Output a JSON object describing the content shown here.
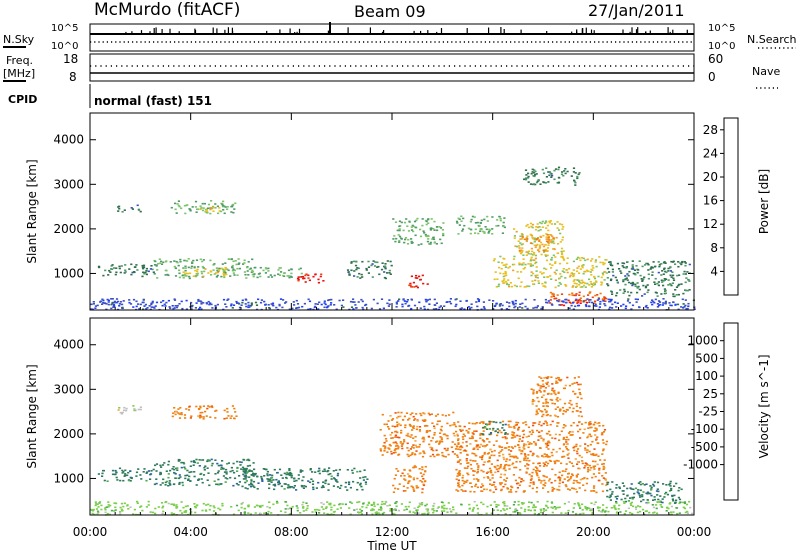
{
  "header": {
    "station": "McMurdo (fitACF)",
    "beam": "Beam 09",
    "date": "27/Jan/2011"
  },
  "noise_panel": {
    "left_label": "N.Sky",
    "right_label": "N.Search",
    "tick_top": "10^5",
    "tick_bottom": "10^0"
  },
  "freq_panel": {
    "left_label_line1": "Freq.",
    "left_label_line2": "[MHz]",
    "left_ticks": [
      "18",
      "8"
    ],
    "right_label": "Nave",
    "right_ticks": [
      "60",
      "0"
    ]
  },
  "cpid": {
    "label": "CPID",
    "value": "normal (fast) 151"
  },
  "colors": {
    "power": [
      "#1f3fff",
      "#3a50c4",
      "#2f6f4c",
      "#4f9a66",
      "#7cc46a",
      "#e8c020",
      "#f0a030",
      "#f07a10",
      "#f04010",
      "#e81010"
    ],
    "velocity": [
      "#3050d8",
      "#2a62a8",
      "#2e7a5a",
      "#4caa50",
      "#7ad04a",
      "#c0c0c0",
      "#f7a640",
      "#f08010",
      "#f05010",
      "#e81010"
    ]
  },
  "chart_data": [
    {
      "type": "heatmap",
      "title": "",
      "xlabel": "Time UT",
      "ylabel": "Slant Range [km]",
      "xlim": [
        "00:00",
        "24:00"
      ],
      "ylim": [
        180,
        4600
      ],
      "x_ticks": [
        "00:00",
        "04:00",
        "08:00",
        "12:00",
        "16:00",
        "20:00",
        "00:00"
      ],
      "y_ticks": [
        1000,
        2000,
        3000,
        4000
      ],
      "colorbar": {
        "label": "Power [dB]",
        "ticks": [
          "4",
          "8",
          "12",
          "16",
          "20",
          "24",
          "28"
        ],
        "range": [
          0,
          30
        ]
      },
      "regions": [
        {
          "t0": 0.3,
          "t1": 2.5,
          "r0": 950,
          "r1": 1250,
          "v": 8
        },
        {
          "t0": 2.5,
          "t1": 6.5,
          "r0": 900,
          "r1": 1350,
          "v": 12
        },
        {
          "t0": 3.5,
          "t1": 5.5,
          "r0": 950,
          "r1": 1150,
          "v": 16
        },
        {
          "t0": 6.5,
          "t1": 8.5,
          "r0": 900,
          "r1": 1150,
          "v": 12
        },
        {
          "t0": 8.2,
          "t1": 9.3,
          "r0": 800,
          "r1": 1050,
          "v": 28
        },
        {
          "t0": 1.0,
          "t1": 2.0,
          "r0": 2400,
          "r1": 2550,
          "v": 8
        },
        {
          "t0": 3.2,
          "t1": 5.8,
          "r0": 2350,
          "r1": 2650,
          "v": 12
        },
        {
          "t0": 4.3,
          "t1": 5.3,
          "r0": 2400,
          "r1": 2550,
          "v": 16
        },
        {
          "t0": 10.2,
          "t1": 12.0,
          "r0": 900,
          "r1": 1300,
          "v": 8
        },
        {
          "t0": 12.6,
          "t1": 13.4,
          "r0": 700,
          "r1": 1000,
          "v": 28
        },
        {
          "t0": 12.0,
          "t1": 14.0,
          "r0": 1650,
          "r1": 2250,
          "v": 12
        },
        {
          "t0": 14.5,
          "t1": 16.5,
          "r0": 1900,
          "r1": 2300,
          "v": 12
        },
        {
          "t0": 16.0,
          "t1": 20.5,
          "r0": 700,
          "r1": 1400,
          "v": 16
        },
        {
          "t0": 16.8,
          "t1": 18.8,
          "r0": 1400,
          "r1": 2200,
          "v": 16
        },
        {
          "t0": 17.0,
          "t1": 18.5,
          "r0": 1500,
          "r1": 1900,
          "v": 20
        },
        {
          "t0": 17.2,
          "t1": 19.5,
          "r0": 3000,
          "r1": 3400,
          "v": 8
        },
        {
          "t0": 18.0,
          "t1": 20.5,
          "r0": 350,
          "r1": 600,
          "v": 24
        },
        {
          "t0": 18.5,
          "t1": 19.8,
          "r0": 300,
          "r1": 450,
          "v": 28
        },
        {
          "t0": 20.5,
          "t1": 23.8,
          "r0": 500,
          "r1": 1300,
          "v": 8
        },
        {
          "t0": 0.0,
          "t1": 24.0,
          "r0": 200,
          "r1": 450,
          "v": 4
        }
      ]
    },
    {
      "type": "heatmap",
      "title": "",
      "xlabel": "Time UT",
      "ylabel": "Slant Range [km]",
      "xlim": [
        "00:00",
        "24:00"
      ],
      "ylim": [
        180,
        4600
      ],
      "x_ticks": [
        "00:00",
        "04:00",
        "08:00",
        "12:00",
        "16:00",
        "20:00",
        "00:00"
      ],
      "y_ticks": [
        1000,
        2000,
        3000,
        4000
      ],
      "colorbar": {
        "label": "Velocity [m s^-1]",
        "ticks": [
          "1000",
          "500",
          "100",
          "25",
          "-25",
          "-100",
          "-500",
          "-1000"
        ]
      },
      "regions": [
        {
          "t0": 0.3,
          "t1": 2.5,
          "r0": 950,
          "r1": 1250,
          "v": 150
        },
        {
          "t0": 2.5,
          "t1": 6.5,
          "r0": 850,
          "r1": 1450,
          "v": 200
        },
        {
          "t0": 6.0,
          "t1": 11.0,
          "r0": 750,
          "r1": 1250,
          "v": 250
        },
        {
          "t0": 3.2,
          "t1": 5.8,
          "r0": 2350,
          "r1": 2650,
          "v": -200
        },
        {
          "t0": 1.0,
          "t1": 2.0,
          "r0": 2450,
          "r1": 2650,
          "v": 0
        },
        {
          "t0": 11.5,
          "t1": 14.5,
          "r0": 1500,
          "r1": 2500,
          "v": -300
        },
        {
          "t0": 12.0,
          "t1": 13.3,
          "r0": 700,
          "r1": 1300,
          "v": -300
        },
        {
          "t0": 14.5,
          "t1": 20.5,
          "r0": 700,
          "r1": 2300,
          "v": -300
        },
        {
          "t0": 17.5,
          "t1": 19.5,
          "r0": 2400,
          "r1": 3300,
          "v": -300
        },
        {
          "t0": 15.5,
          "t1": 16.5,
          "r0": 2000,
          "r1": 2300,
          "v": 200
        },
        {
          "t0": 20.5,
          "t1": 23.5,
          "r0": 450,
          "r1": 950,
          "v": 150
        },
        {
          "t0": 0.0,
          "t1": 24.0,
          "r0": 200,
          "r1": 500,
          "v": 40
        }
      ]
    }
  ]
}
